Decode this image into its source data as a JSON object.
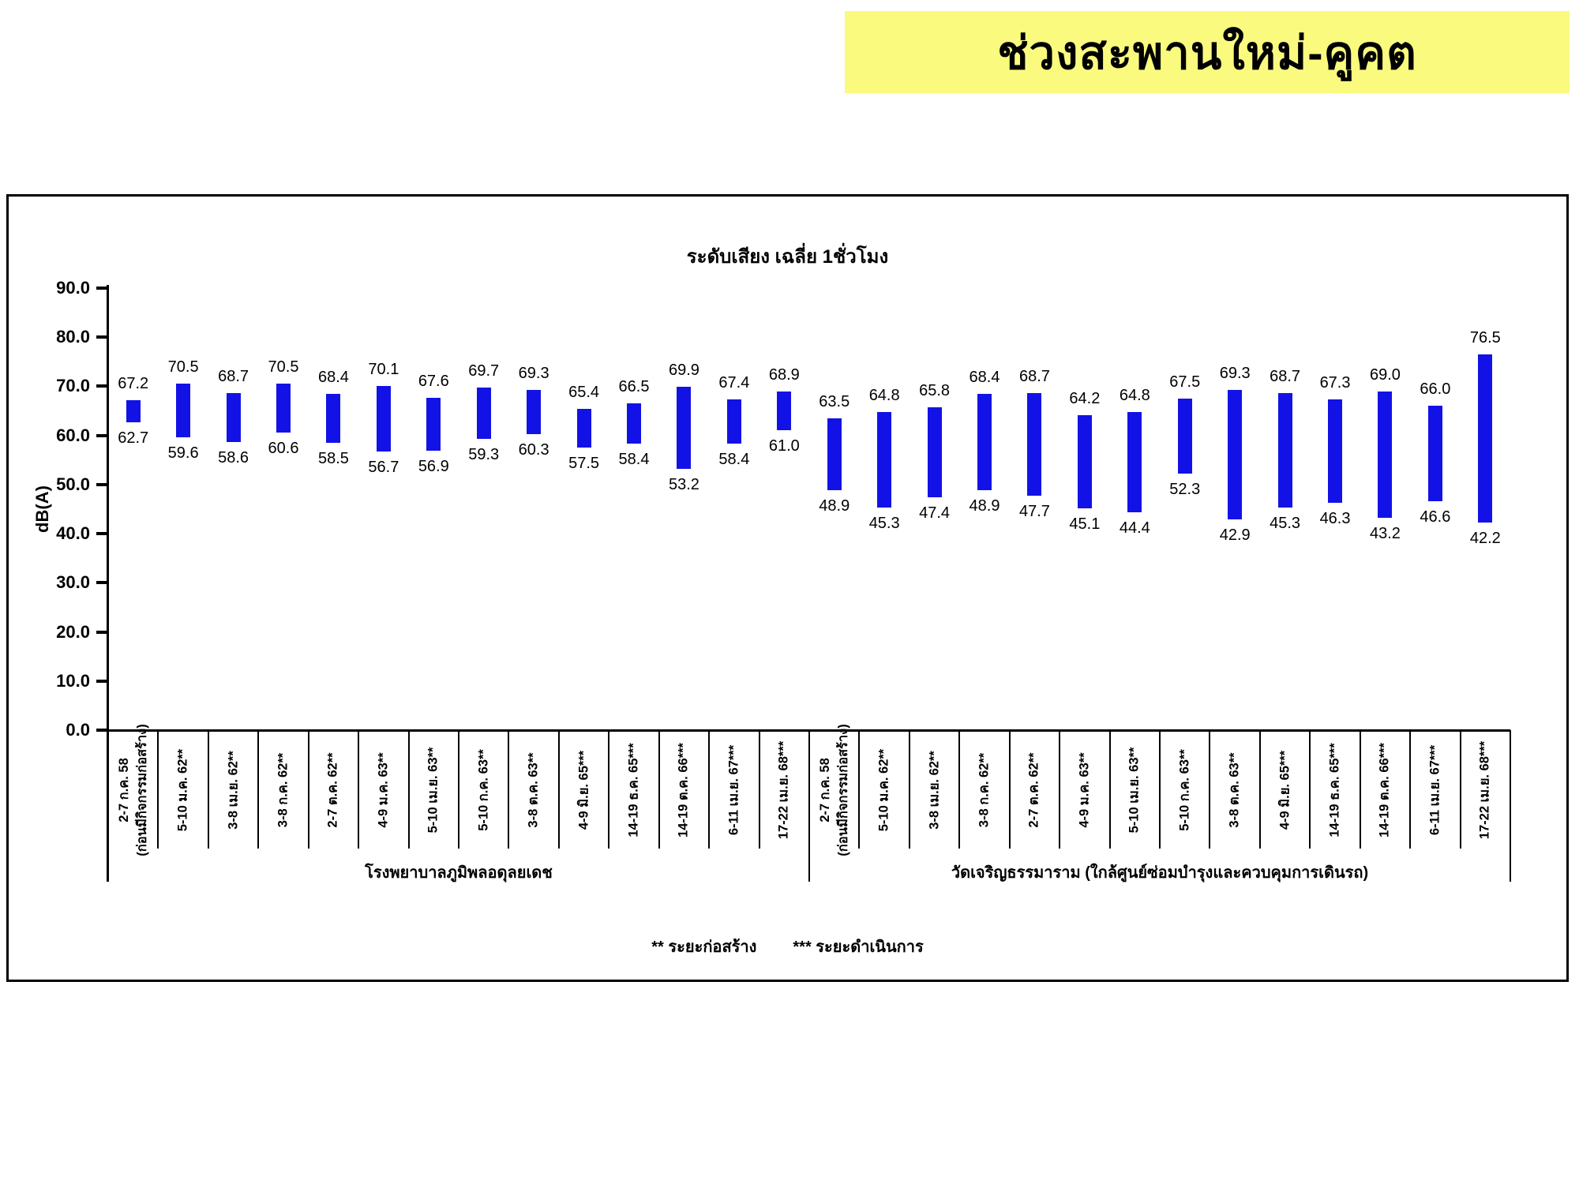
{
  "slide": {
    "title": "ช่วงสะพานใหม่-คูคต",
    "title_bg_color": "#FAFA7E",
    "title_text_color": "#000000"
  },
  "chart_data": {
    "type": "bar",
    "subtype": "floating-range-bars",
    "title": "ระดับเสียง เฉลี่ย 1ชั่วโมง",
    "ylabel": "dB(A)",
    "ylim": [
      0,
      90
    ],
    "ytick_step": 10,
    "ytick_decimals": 1,
    "grid": false,
    "legend": false,
    "bar_color": "#1212E6",
    "groups": [
      {
        "label": "โรงพยาบาลภูมิพลอดุลยเดช",
        "categories": [
          "2-7 ก.ค. 58\n(ก่อนมีกิจกรรมก่อสร้าง)",
          "5-10 ม.ค. 62**",
          "3-8 เม.ย. 62**",
          "3-8 ก.ค. 62**",
          "2-7 ต.ค. 62**",
          "4-9 ม.ค. 63**",
          "5-10 เม.ย. 63**",
          "5-10 ก.ค. 63**",
          "3-8 ต.ค. 63**",
          "4-9 มิ.ย. 65***",
          "14-19 ธ.ค. 65***",
          "14-19 ต.ค. 66***",
          "6-11 เม.ย. 67***",
          "17-22 เม.ย. 68***"
        ],
        "max": [
          67.2,
          70.5,
          68.7,
          70.5,
          68.4,
          70.1,
          67.6,
          69.7,
          69.3,
          65.4,
          66.5,
          69.9,
          67.4,
          68.9
        ],
        "min": [
          62.7,
          59.6,
          58.6,
          60.6,
          58.5,
          56.7,
          56.9,
          59.3,
          60.3,
          57.5,
          58.4,
          53.2,
          58.4,
          61.0
        ]
      },
      {
        "label": "วัดเจริญธรรมาราม (ใกล้ศูนย์ซ่อมบำรุงและควบคุมการเดินรถ)",
        "categories": [
          "2-7 ก.ค. 58\n(ก่อนมีกิจกรรมก่อสร้าง)",
          "5-10 ม.ค. 62**",
          "3-8 เม.ย. 62**",
          "3-8 ก.ค. 62**",
          "2-7 ต.ค. 62**",
          "4-9 ม.ค. 63**",
          "5-10 เม.ย. 63**",
          "5-10 ก.ค. 63**",
          "3-8 ต.ค. 63**",
          "4-9 มิ.ย. 65***",
          "14-19 ธ.ค. 65***",
          "14-19 ต.ค. 66***",
          "6-11 เม.ย. 67***",
          "17-22 เม.ย. 68***"
        ],
        "max": [
          63.5,
          64.8,
          65.8,
          68.4,
          68.7,
          64.2,
          64.8,
          67.5,
          69.3,
          68.7,
          67.3,
          69.0,
          66.0,
          76.5
        ],
        "min": [
          48.9,
          45.3,
          47.4,
          48.9,
          47.7,
          45.1,
          44.4,
          52.3,
          42.9,
          45.3,
          46.3,
          43.2,
          46.6,
          42.2
        ]
      }
    ],
    "footnotes": [
      "** ระยะก่อสร้าง",
      "*** ระยะดำเนินการ"
    ]
  }
}
